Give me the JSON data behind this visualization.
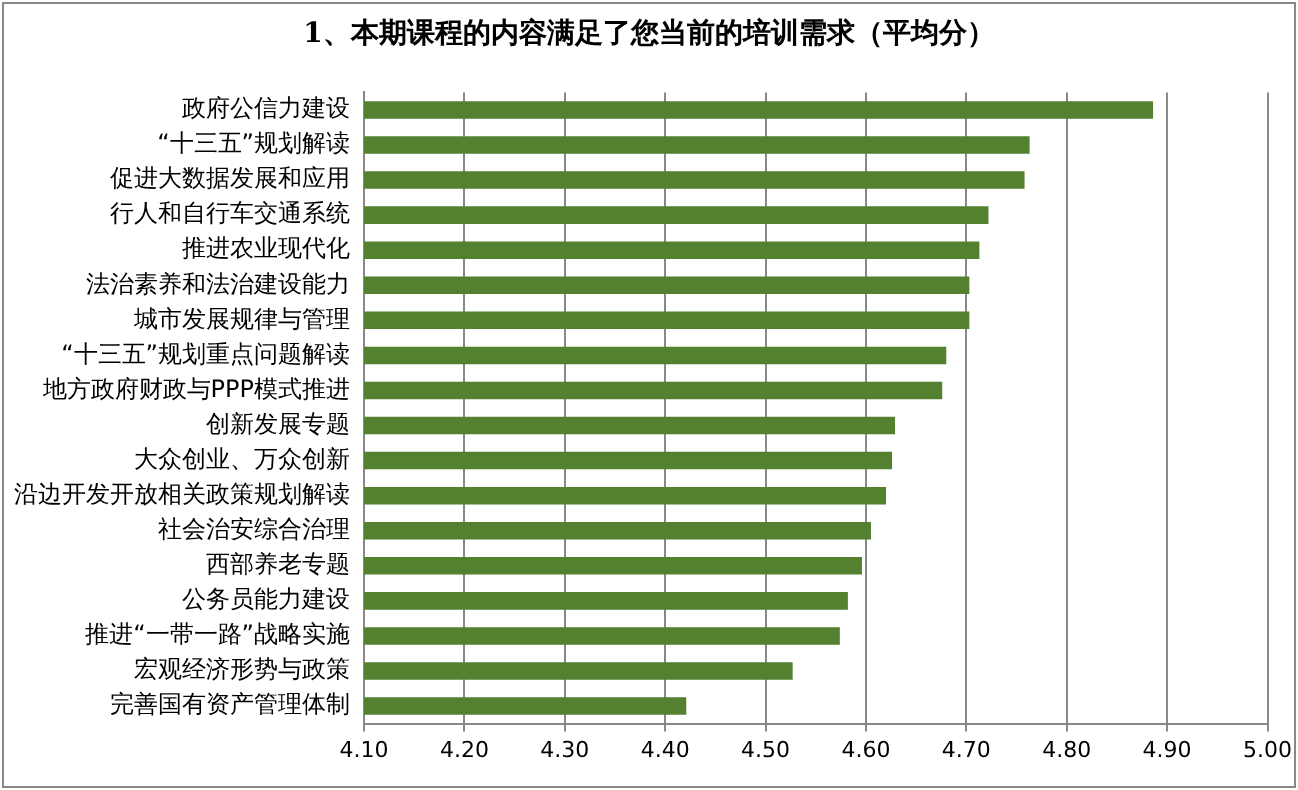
{
  "chart_data": {
    "type": "bar",
    "orientation": "horizontal",
    "title": "1、本期课程的内容满足了您当前的培训需求（平均分）",
    "categories": [
      "政府公信力建设",
      "“十三五”规划解读",
      "促进大数据发展和应用",
      "行人和自行车交通系统",
      "推进农业现代化",
      "法治素养和法治建设能力",
      "城市发展规律与管理",
      "“十三五”规划重点问题解读",
      "地方政府财政与PPP模式推进",
      "创新发展专题",
      "大众创业、万众创新",
      "沿边开发开放相关政策规划解读",
      "社会治安综合治理",
      "西部养老专题",
      "公务员能力建设",
      "推进“一带一路”战略实施",
      "宏观经济形势与政策",
      "完善国有资产管理体制"
    ],
    "values": [
      4.886,
      4.763,
      4.758,
      4.722,
      4.713,
      4.703,
      4.703,
      4.68,
      4.676,
      4.629,
      4.626,
      4.62,
      4.605,
      4.596,
      4.582,
      4.574,
      4.527,
      4.421
    ],
    "color": "#53812f",
    "xlim": [
      4.1,
      5.0
    ],
    "xticks": [
      {
        "value": 4.1,
        "label": "4.10"
      },
      {
        "value": 4.2,
        "label": "4.20"
      },
      {
        "value": 4.3,
        "label": "4.30"
      },
      {
        "value": 4.4,
        "label": "4.40"
      },
      {
        "value": 4.5,
        "label": "4.50"
      },
      {
        "value": 4.6,
        "label": "4.60"
      },
      {
        "value": 4.7,
        "label": "4.70"
      },
      {
        "value": 4.8,
        "label": "4.80"
      },
      {
        "value": 4.9,
        "label": "4.90"
      },
      {
        "value": 5.0,
        "label": "5.00"
      }
    ],
    "grid": "x",
    "legend": false
  }
}
